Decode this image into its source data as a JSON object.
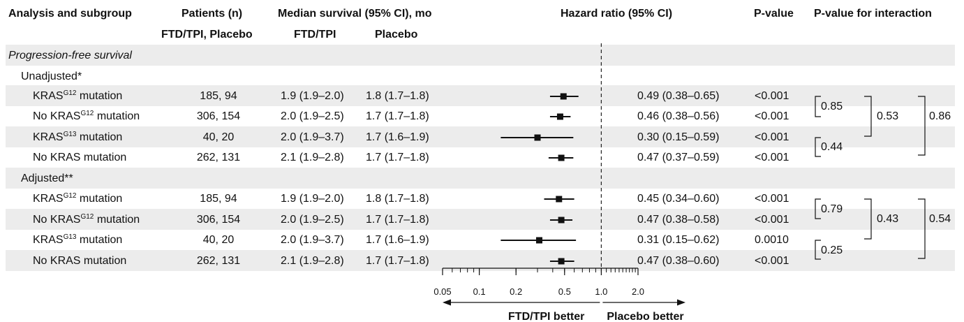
{
  "headers": {
    "analysis": "Analysis and subgroup",
    "patients": "Patients (n)",
    "patients_sub": "FTD/TPI, Placebo",
    "median": "Median survival (95% CI), mo",
    "median_sub_ftd": "FTD/TPI",
    "median_sub_placebo": "Placebo",
    "hr": "Hazard ratio (95% CI)",
    "pvalue": "P-value",
    "pinteraction": "P-value for interaction"
  },
  "sections": {
    "endpoint": "Progression-free survival",
    "unadjusted": "Unadjusted*",
    "adjusted": "Adjusted**"
  },
  "rows": [
    {
      "label_pre": "KRAS",
      "label_sup": "G12",
      "label_post": " mutation",
      "patients": "185, 94",
      "ftd": "1.9 (1.9–2.0)",
      "placebo": "1.8 (1.7–1.8)",
      "hr_text": "0.49 (0.38–0.65)",
      "p": "<0.001"
    },
    {
      "label_pre": "No KRAS",
      "label_sup": "G12",
      "label_post": " mutation",
      "patients": "306, 154",
      "ftd": "2.0 (1.9–2.5)",
      "placebo": "1.7 (1.7–1.8)",
      "hr_text": "0.46 (0.38–0.56)",
      "p": "<0.001"
    },
    {
      "label_pre": "KRAS",
      "label_sup": "G13",
      "label_post": " mutation",
      "patients": "40, 20",
      "ftd": "2.0 (1.9–3.7)",
      "placebo": "1.7 (1.6–1.9)",
      "hr_text": "0.30 (0.15–0.59)",
      "p": "<0.001"
    },
    {
      "label_pre": "No KRAS mutation",
      "label_sup": "",
      "label_post": "",
      "patients": "262, 131",
      "ftd": "2.1 (1.9–2.8)",
      "placebo": "1.7 (1.7–1.8)",
      "hr_text": "0.47 (0.37–0.59)",
      "p": "<0.001"
    },
    {
      "label_pre": "KRAS",
      "label_sup": "G12",
      "label_post": " mutation",
      "patients": "185, 94",
      "ftd": "1.9 (1.9–2.0)",
      "placebo": "1.8 (1.7–1.8)",
      "hr_text": "0.45 (0.34–0.60)",
      "p": "<0.001"
    },
    {
      "label_pre": "No KRAS",
      "label_sup": "G12",
      "label_post": " mutation",
      "patients": "306, 154",
      "ftd": "2.0 (1.9–2.5)",
      "placebo": "1.7 (1.7–1.8)",
      "hr_text": "0.47 (0.38–0.58)",
      "p": "<0.001"
    },
    {
      "label_pre": "KRAS",
      "label_sup": "G13",
      "label_post": " mutation",
      "patients": "40, 20",
      "ftd": "2.0 (1.9–3.7)",
      "placebo": "1.7 (1.6–1.9)",
      "hr_text": "0.31 (0.15–0.62)",
      "p": "0.0010"
    },
    {
      "label_pre": "No KRAS mutation",
      "label_sup": "",
      "label_post": "",
      "patients": "262, 131",
      "ftd": "2.1 (1.9–2.8)",
      "placebo": "1.7 (1.7–1.8)",
      "hr_text": "0.47 (0.38–0.60)",
      "p": "<0.001"
    }
  ],
  "interactions": {
    "unadjusted": {
      "pair_g12": "0.85",
      "pair_g13": "0.44",
      "g12_vs_g13": "0.53",
      "all": "0.86"
    },
    "adjusted": {
      "pair_g12": "0.79",
      "pair_g13": "0.25",
      "g12_vs_g13": "0.43",
      "all": "0.54"
    }
  },
  "chart_data": {
    "type": "forest",
    "scale": "log",
    "xlim": [
      0.05,
      2.0
    ],
    "reference_line": 1.0,
    "x_ticks": [
      0.05,
      0.1,
      0.2,
      0.5,
      1.0,
      2.0
    ],
    "x_tick_labels": [
      "0.05",
      "0.1",
      "0.2",
      "0.5",
      "1.0",
      "2.0"
    ],
    "left_label": "FTD/TPI better",
    "right_label": "Placebo better",
    "points": [
      {
        "hr": 0.49,
        "lo": 0.38,
        "hi": 0.65
      },
      {
        "hr": 0.46,
        "lo": 0.38,
        "hi": 0.56
      },
      {
        "hr": 0.3,
        "lo": 0.15,
        "hi": 0.59
      },
      {
        "hr": 0.47,
        "lo": 0.37,
        "hi": 0.59
      },
      {
        "hr": 0.45,
        "lo": 0.34,
        "hi": 0.6
      },
      {
        "hr": 0.47,
        "lo": 0.38,
        "hi": 0.58
      },
      {
        "hr": 0.31,
        "lo": 0.15,
        "hi": 0.62
      },
      {
        "hr": 0.47,
        "lo": 0.38,
        "hi": 0.6
      }
    ]
  }
}
